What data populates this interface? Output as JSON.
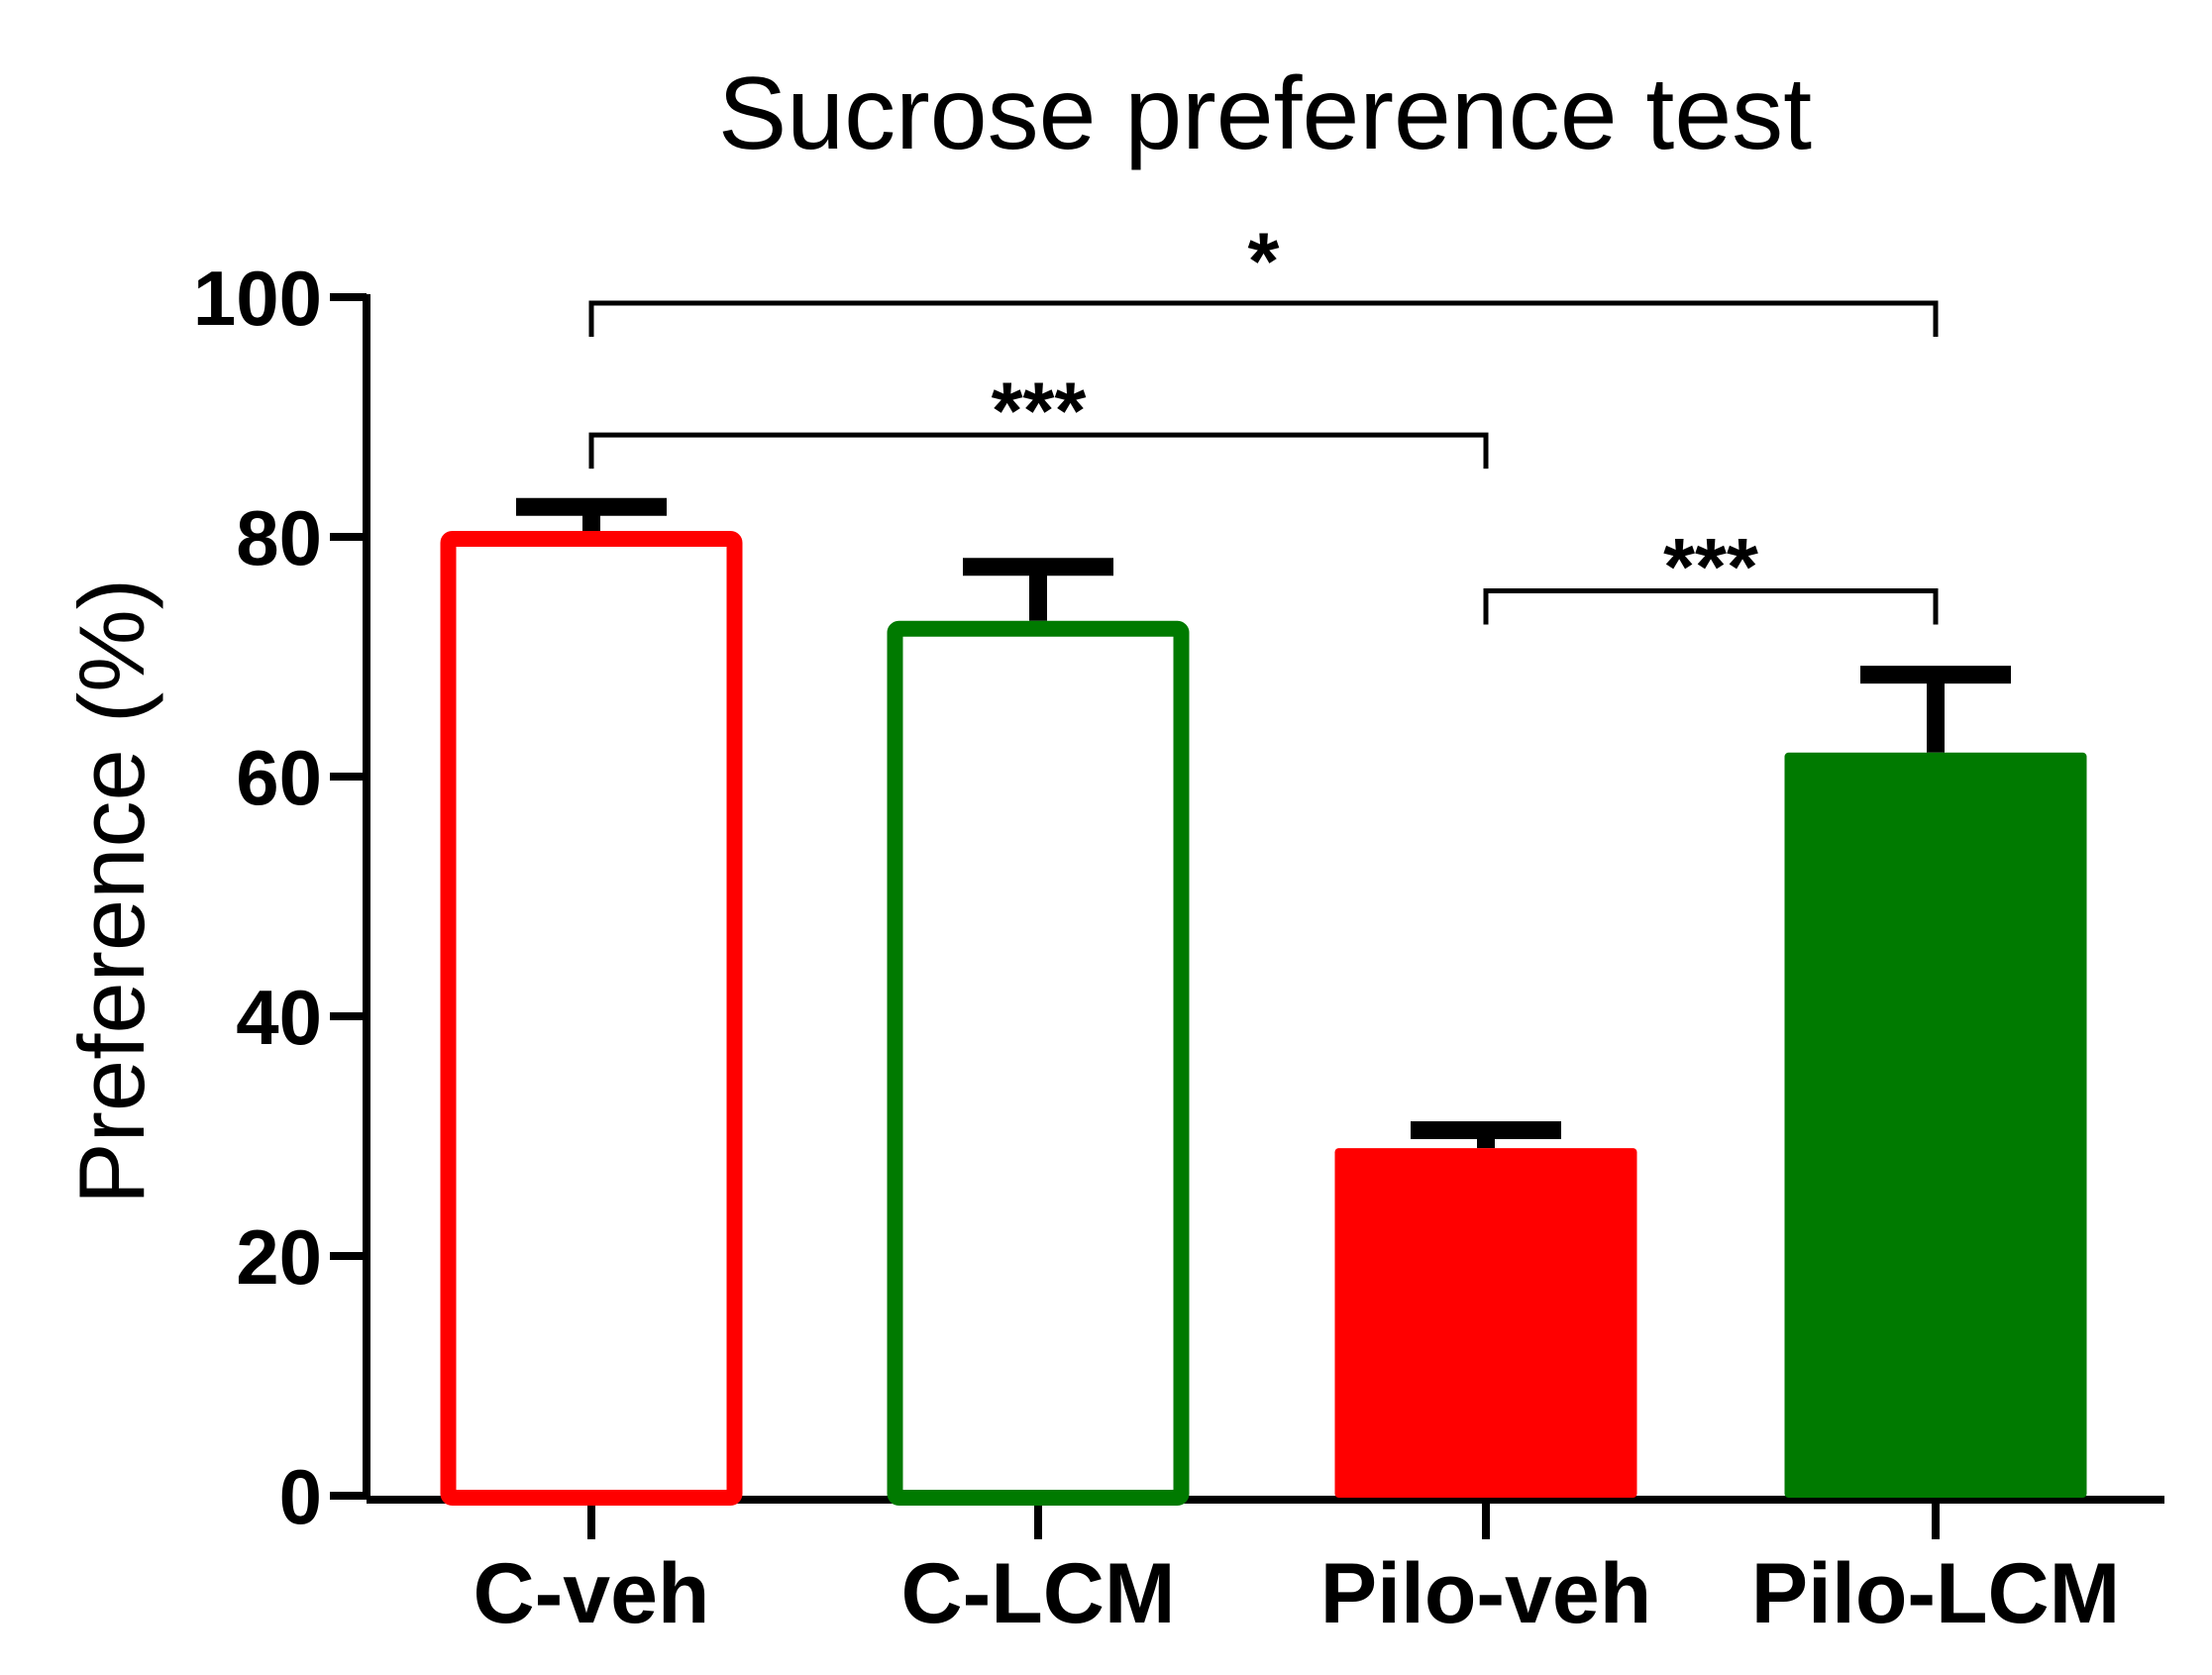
{
  "chart_data": {
    "type": "bar",
    "title": "Sucrose preference test",
    "xlabel": "",
    "ylabel": "Preference (%)",
    "ylim": [
      0,
      100
    ],
    "yticks": [
      0,
      20,
      40,
      60,
      80,
      100
    ],
    "categories": [
      "C-veh",
      "C-LCM",
      "Pilo-veh",
      "Pilo-LCM"
    ],
    "values": [
      80.5,
      73,
      29,
      62
    ],
    "errors": [
      2,
      4.5,
      1.5,
      6.5
    ],
    "bar_styles": [
      {
        "stroke": "#ff0000",
        "fill": "#ffffff"
      },
      {
        "stroke": "#007a00",
        "fill": "#ffffff"
      },
      {
        "stroke": "#ff0000",
        "fill": "#ff0000"
      },
      {
        "stroke": "#007a00",
        "fill": "#007a00"
      }
    ],
    "significance": [
      {
        "from": "C-veh",
        "to": "Pilo-LCM",
        "label": "*",
        "level": 99.5
      },
      {
        "from": "C-veh",
        "to": "Pilo-veh",
        "label": "***",
        "level": 88.5
      },
      {
        "from": "Pilo-veh",
        "to": "Pilo-LCM",
        "label": "***",
        "level": 75.5
      }
    ],
    "grid": false,
    "legend": "none"
  }
}
